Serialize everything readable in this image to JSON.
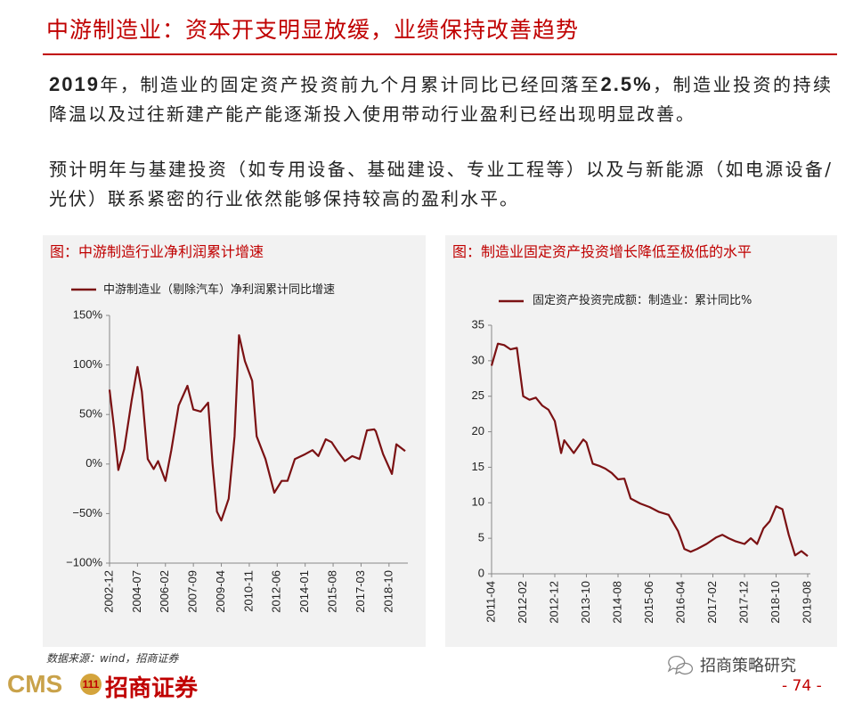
{
  "title": "中游制造业：资本开支明显放缓，业绩保持改善趋势",
  "paragraphs": [
    [
      "2019",
      "年，制造业的固定资产投资前九个月累计同比已经回落至",
      "2.5%",
      "，制造业投资的持续降温以及过往新建产能产能逐渐投入使用带动行业盈利已经出现明显改善。"
    ],
    [
      "预计明年与基建投资（如专用设备、基础建设、专业工程等）以及与新能源（如电源设备/光伏）联系紧密的行业依然能够保持较高的盈利水平。"
    ]
  ],
  "chart_data": [
    {
      "type": "line",
      "title": "图：中游制造行业净利润累计增速",
      "x": [
        "2002-12",
        "2003-03",
        "2003-06",
        "2003-10",
        "2004-03",
        "2004-07",
        "2004-10",
        "2005-02",
        "2005-06",
        "2005-09",
        "2006-02",
        "2006-06",
        "2006-11",
        "2007-05",
        "2007-09",
        "2008-02",
        "2008-07",
        "2008-10",
        "2009-01",
        "2009-04",
        "2009-09",
        "2010-01",
        "2010-04",
        "2010-08",
        "2011-01",
        "2011-04",
        "2011-10",
        "2012-04",
        "2012-09",
        "2013-01",
        "2013-06",
        "2014-01",
        "2014-06",
        "2014-10",
        "2015-03",
        "2015-07",
        "2015-11",
        "2016-04",
        "2016-09",
        "2017-02",
        "2017-07",
        "2017-12",
        "2018-01",
        "2018-06",
        "2018-12",
        "2019-03",
        "2019-09"
      ],
      "series": [
        {
          "name": "中游制造业（剔除汽车）净利润累计同比增速",
          "color": "#7b1113",
          "values": [
            75,
            37,
            -6,
            15,
            64,
            98,
            73,
            5,
            -5,
            3,
            -17,
            14,
            59,
            79,
            55,
            53,
            62,
            1,
            -48,
            -57,
            -35,
            28,
            130,
            104,
            84,
            28,
            5,
            -29,
            -17,
            -17,
            5,
            10,
            14,
            8,
            25,
            22,
            13,
            3,
            8,
            5,
            34,
            35,
            33,
            10,
            -10,
            20,
            13
          ]
        }
      ],
      "ylim": [
        -100,
        150
      ],
      "yticks": [
        {
          "value": 150,
          "label": "150%"
        },
        {
          "value": 100,
          "label": "100%"
        },
        {
          "value": 50,
          "label": "50%"
        },
        {
          "value": 0,
          "label": "0%"
        },
        {
          "value": -50,
          "label": "−50%"
        },
        {
          "value": -100,
          "label": "−100%"
        }
      ],
      "xticks": [
        "2002-12",
        "2004-07",
        "2006-02",
        "2007-09",
        "2009-04",
        "2010-11",
        "2012-06",
        "2014-01",
        "2015-08",
        "2017-03",
        "2018-10"
      ]
    },
    {
      "type": "line",
      "title": "图：制造业固定资产投资增长降低至极低的水平",
      "x": [
        "2011-04",
        "2011-06",
        "2011-08",
        "2011-10",
        "2011-12",
        "2012-02",
        "2012-04",
        "2012-06",
        "2012-08",
        "2012-10",
        "2012-12",
        "2013-02",
        "2013-03",
        "2013-06",
        "2013-09",
        "2013-10",
        "2013-12",
        "2014-02",
        "2014-04",
        "2014-06",
        "2014-08",
        "2014-10",
        "2014-12",
        "2015-03",
        "2015-06",
        "2015-09",
        "2015-12",
        "2016-03",
        "2016-05",
        "2016-07",
        "2016-09",
        "2016-12",
        "2017-03",
        "2017-05",
        "2017-07",
        "2017-09",
        "2017-12",
        "2018-02",
        "2018-04",
        "2018-06",
        "2018-08",
        "2018-10",
        "2018-12",
        "2019-02",
        "2019-04",
        "2019-06",
        "2019-08"
      ],
      "series": [
        {
          "name": "固定资产投资完成额：制造业：累计同比%",
          "color": "#7b1113",
          "values": [
            29.3,
            32.4,
            32.2,
            31.6,
            31.8,
            25,
            24.5,
            24.8,
            23.7,
            23.1,
            21.5,
            17,
            18.8,
            17,
            18.9,
            18.5,
            15.5,
            15.2,
            14.8,
            14.2,
            13.3,
            13.4,
            10.6,
            9.9,
            9.4,
            8.7,
            8.3,
            6.0,
            3.5,
            3.1,
            3.5,
            4.2,
            5.1,
            5.5,
            5.0,
            4.6,
            4.2,
            5.0,
            4.2,
            6.4,
            7.4,
            9.5,
            9.1,
            5.5,
            2.6,
            3.2,
            2.5
          ]
        }
      ],
      "ylim": [
        0,
        35
      ],
      "yticks": [
        0,
        5,
        10,
        15,
        20,
        25,
        30,
        35
      ],
      "xticks": [
        "2011-04",
        "2012-02",
        "2012-12",
        "2013-10",
        "2014-08",
        "2015-06",
        "2016-04",
        "2017-02",
        "2017-12",
        "2018-10",
        "2019-08"
      ]
    }
  ],
  "source": "数据来源：wind，招商证券",
  "logo": {
    "mark": "CMS",
    "name": "招商证券"
  },
  "watermark": "招商策略研究",
  "page_number": "- 74 -"
}
